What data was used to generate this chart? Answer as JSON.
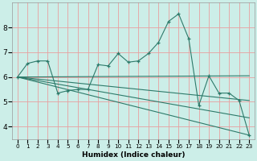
{
  "xlabel": "Humidex (Indice chaleur)",
  "bg_color": "#cceee8",
  "grid_color": "#e8a0a0",
  "line_color": "#2d7a6a",
  "xlim": [
    -0.5,
    23.5
  ],
  "ylim": [
    3.5,
    9.0
  ],
  "yticks": [
    4,
    5,
    6,
    7,
    8
  ],
  "xtick_labels": [
    "0",
    "1",
    "2",
    "3",
    "4",
    "5",
    "6",
    "7",
    "8",
    "9",
    "10",
    "11",
    "12",
    "13",
    "14",
    "15",
    "16",
    "17",
    "18",
    "19",
    "20",
    "21",
    "22",
    "23"
  ],
  "main_series_x": [
    0,
    1,
    2,
    3,
    4,
    5,
    6,
    7,
    8,
    9,
    10,
    11,
    12,
    13,
    14,
    15,
    16,
    17,
    18,
    19,
    20,
    21,
    22,
    23
  ],
  "main_series_y": [
    6.0,
    6.55,
    6.65,
    6.65,
    5.35,
    5.45,
    5.5,
    5.5,
    6.5,
    6.45,
    6.95,
    6.6,
    6.65,
    6.95,
    7.4,
    8.25,
    8.55,
    7.55,
    4.85,
    6.05,
    5.35,
    5.35,
    5.05,
    3.65
  ],
  "fan_lines": [
    {
      "x": [
        0,
        23
      ],
      "y": [
        6.0,
        3.65
      ]
    },
    {
      "x": [
        0,
        23
      ],
      "y": [
        6.0,
        4.35
      ]
    },
    {
      "x": [
        0,
        23
      ],
      "y": [
        6.0,
        5.05
      ]
    },
    {
      "x": [
        0,
        23
      ],
      "y": [
        6.0,
        6.05
      ]
    }
  ]
}
